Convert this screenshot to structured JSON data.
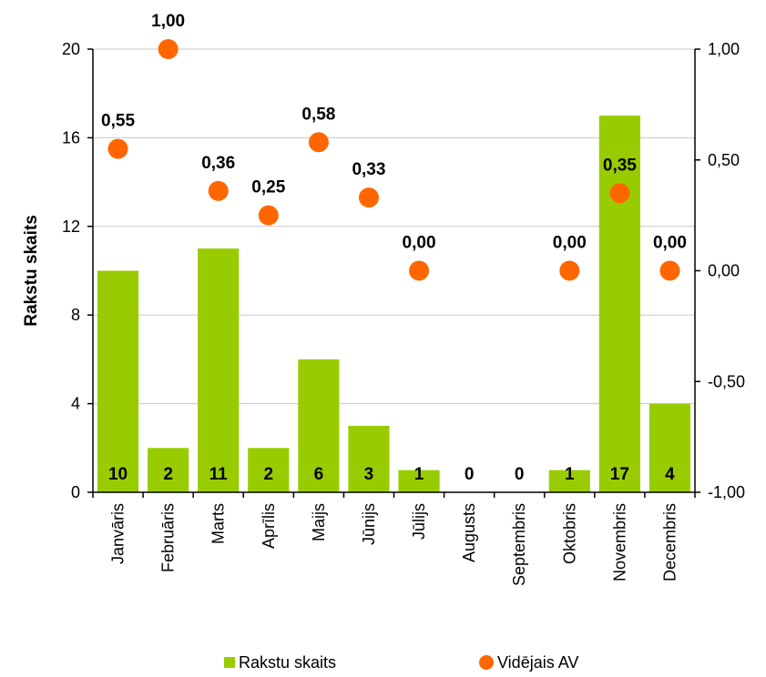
{
  "chart_data": {
    "type": "bar+scatter",
    "categories": [
      "Janvāris",
      "Februāris",
      "Marts",
      "Aprīlis",
      "Maijs",
      "Jūnijs",
      "Jūlijs",
      "Augusts",
      "Septembris",
      "Oktobris",
      "Novembris",
      "Decembris"
    ],
    "series": [
      {
        "name": "Rakstu skaits",
        "type": "bar",
        "axis": "left",
        "color": "#99cc00",
        "values": [
          10,
          2,
          11,
          2,
          6,
          3,
          1,
          0,
          0,
          1,
          17,
          4
        ],
        "labels": [
          "10",
          "2",
          "11",
          "2",
          "6",
          "3",
          "1",
          "0",
          "0",
          "1",
          "17",
          "4"
        ]
      },
      {
        "name": "Vidējais AV",
        "type": "scatter",
        "axis": "right",
        "color": "#ff6600",
        "values": [
          0.55,
          1.0,
          0.36,
          0.25,
          0.58,
          0.33,
          0.0,
          null,
          null,
          0.0,
          0.35,
          0.0
        ],
        "labels": [
          "0,55",
          "1,00",
          "0,36",
          "0,25",
          "0,58",
          "0,33",
          "0,00",
          "",
          "",
          "0,00",
          "0,35",
          "0,00"
        ]
      }
    ],
    "ylabel": "Rakstu skaits",
    "ylim": [
      0,
      20
    ],
    "yticks": [
      "0",
      "4",
      "8",
      "12",
      "16",
      "20"
    ],
    "y2lim": [
      -1,
      1
    ],
    "y2ticks": [
      "-1,00",
      "-0,50",
      "0,00",
      "0,50",
      "1,00"
    ],
    "grid": true,
    "legend": "bottom"
  }
}
